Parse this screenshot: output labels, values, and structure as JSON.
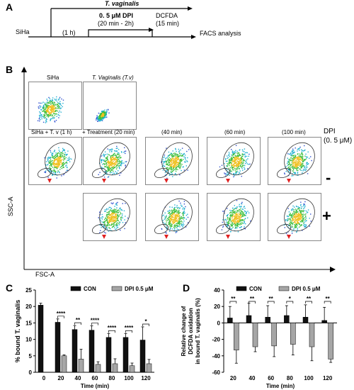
{
  "panel_a": {
    "letter": "A",
    "organism": "T. vaginalis",
    "cell_line": "SiHa",
    "time_1h": "(1 h)",
    "dpi_line1": "0. 5 μM DPI",
    "dpi_line2": "(20 min - 2h)",
    "dcfda_line1": "DCFDA",
    "dcfda_line2": "(15 min)",
    "facs": "FACS analysis"
  },
  "panel_b": {
    "letter": "B",
    "label_siha": "SiHa",
    "label_tv": "T. Vaginalis (T.v)",
    "label_siha_tv": "SiHa + T. v (1 h)",
    "label_treatment": "+ Treatment (20 min)",
    "label_40": "(40 min)",
    "label_60": "(60 min)",
    "label_100": "(100 min)",
    "dpi_header_1": "DPI",
    "dpi_header_2": "(0. 5 μM)",
    "minus": "-",
    "plus": "+",
    "y_axis": "SSC-A",
    "x_axis": "FSC-A"
  },
  "chart_data": [
    {
      "panel": "C",
      "type": "bar",
      "xlabel": "Time (min)",
      "ylabel": "% bound T. vaginalis",
      "ylim": [
        0,
        25
      ],
      "yticks": [
        0,
        5,
        10,
        15,
        20,
        25
      ],
      "categories": [
        "0",
        "20",
        "40",
        "60",
        "80",
        "100",
        "120"
      ],
      "legend": [
        "CON",
        "DPI 0.5 μM"
      ],
      "series": [
        {
          "name": "CON",
          "color": "#111111",
          "values": [
            20.4,
            15.2,
            13.0,
            12.8,
            10.6,
            10.6,
            9.8
          ],
          "errors": [
            0.6,
            1.0,
            1.2,
            1.3,
            1.2,
            1.2,
            4.0
          ]
        },
        {
          "name": "DPI 0.5 μM",
          "color": "#a6a6a6",
          "values": [
            null,
            5.0,
            4.0,
            2.4,
            2.6,
            2.0,
            2.6
          ],
          "errors": [
            null,
            0.3,
            3.0,
            0.8,
            1.5,
            0.8,
            1.3
          ]
        }
      ],
      "significance": [
        "",
        "****",
        "**",
        "****",
        "****",
        "****",
        "*"
      ]
    },
    {
      "panel": "D",
      "type": "bar",
      "xlabel": "Time (min)",
      "ylabel_lines": [
        "Relative change of",
        "DCFDA oxidation",
        "in bound T. vaginalis (%)"
      ],
      "ylim": [
        -60,
        40
      ],
      "yticks": [
        -60,
        -40,
        -20,
        0,
        20,
        40
      ],
      "categories": [
        "20",
        "40",
        "60",
        "80",
        "100",
        "120"
      ],
      "legend": [
        "CON",
        "DPI 0.5 μM"
      ],
      "series": [
        {
          "name": "CON",
          "color": "#111111",
          "values": [
            6,
            9,
            7,
            9,
            7,
            3
          ],
          "errors": [
            14,
            15,
            14,
            12,
            15,
            16
          ]
        },
        {
          "name": "DPI 0.5 μM",
          "color": "#a6a6a6",
          "values": [
            -33,
            -29,
            -28,
            -26,
            -29,
            -44
          ],
          "errors": [
            16,
            6,
            13,
            13,
            17,
            4
          ]
        }
      ],
      "significance": [
        "**",
        "**",
        "**",
        "*",
        "**",
        "**"
      ]
    }
  ]
}
